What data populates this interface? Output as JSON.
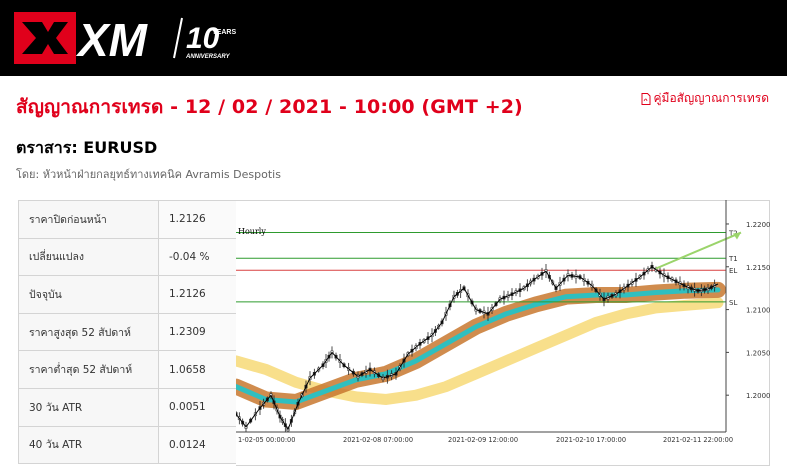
{
  "brand": {
    "logo_text": "XM",
    "anniversary_number": "10",
    "anniversary_years": "YEARS",
    "anniversary_label": "ANNIVERSARY",
    "accent": "#e0001b"
  },
  "title": "สัญญาณการเทรด - 12 / 02 / 2021 - 10:00 (GMT +2)",
  "guide_link": "คู่มือสัญญาณการเทรด",
  "instrument": "ตราสาร: EURUSD",
  "author": "โดย: หัวหน้าฝ่ายกลยุทธ์ทางเทคนิค Avramis Despotis",
  "stats": [
    {
      "label": "ราคาปิดก่อนหน้า",
      "value": "1.2126"
    },
    {
      "label": "เปลี่ยนแปลง",
      "value": "-0.04 %"
    },
    {
      "label": "ปัจจุบัน",
      "value": "1.2126"
    },
    {
      "label": "ราคาสูงสุด 52 สัปดาห์",
      "value": "1.2309"
    },
    {
      "label": "ราคาต่ำสุด 52 สัปดาห์",
      "value": "1.0658"
    },
    {
      "label": "30 วัน ATR",
      "value": "0.0051"
    },
    {
      "label": "40 วัน ATR",
      "value": "0.0124"
    }
  ],
  "chart_data": {
    "type": "line",
    "title": "Hourly",
    "x_tick_labels": [
      "1-02-05 00:00:00",
      "2021-02-08 07:00:00",
      "2021-02-09 12:00:00",
      "2021-02-10 17:00:00",
      "2021-02-11 22:00:00"
    ],
    "y_ticks": [
      "1.2200",
      "1.2150",
      "1.2100",
      "1.2050",
      "1.2000"
    ],
    "ylim": [
      1.1957,
      1.2228
    ],
    "levels": [
      {
        "name": "T2",
        "value": 1.219,
        "color": "#2e9b2e"
      },
      {
        "name": "T1",
        "value": 1.216,
        "color": "#2e9b2e"
      },
      {
        "name": "EL",
        "value": 1.2146,
        "color": "#d94040"
      },
      {
        "name": "SL",
        "value": 1.2109,
        "color": "#2e9b2e"
      }
    ],
    "price_path": [
      {
        "x": 0,
        "y": 1.1978
      },
      {
        "x": 10,
        "y": 1.1963
      },
      {
        "x": 24,
        "y": 1.1985
      },
      {
        "x": 35,
        "y": 1.2
      },
      {
        "x": 44,
        "y": 1.1975
      },
      {
        "x": 52,
        "y": 1.196
      },
      {
        "x": 62,
        "y": 1.199
      },
      {
        "x": 74,
        "y": 1.202
      },
      {
        "x": 87,
        "y": 1.2035
      },
      {
        "x": 96,
        "y": 1.205
      },
      {
        "x": 108,
        "y": 1.2035
      },
      {
        "x": 122,
        "y": 1.2022
      },
      {
        "x": 134,
        "y": 1.203
      },
      {
        "x": 147,
        "y": 1.202
      },
      {
        "x": 160,
        "y": 1.2025
      },
      {
        "x": 172,
        "y": 1.2048
      },
      {
        "x": 184,
        "y": 1.206
      },
      {
        "x": 196,
        "y": 1.207
      },
      {
        "x": 206,
        "y": 1.2085
      },
      {
        "x": 218,
        "y": 1.2115
      },
      {
        "x": 228,
        "y": 1.2125
      },
      {
        "x": 240,
        "y": 1.21
      },
      {
        "x": 252,
        "y": 1.2095
      },
      {
        "x": 264,
        "y": 1.2112
      },
      {
        "x": 276,
        "y": 1.2118
      },
      {
        "x": 288,
        "y": 1.2125
      },
      {
        "x": 298,
        "y": 1.2135
      },
      {
        "x": 310,
        "y": 1.2145
      },
      {
        "x": 320,
        "y": 1.2125
      },
      {
        "x": 332,
        "y": 1.214
      },
      {
        "x": 344,
        "y": 1.2138
      },
      {
        "x": 356,
        "y": 1.2128
      },
      {
        "x": 368,
        "y": 1.2112
      },
      {
        "x": 380,
        "y": 1.2118
      },
      {
        "x": 392,
        "y": 1.2128
      },
      {
        "x": 404,
        "y": 1.2138
      },
      {
        "x": 416,
        "y": 1.215
      },
      {
        "x": 428,
        "y": 1.214
      },
      {
        "x": 440,
        "y": 1.2133
      },
      {
        "x": 452,
        "y": 1.2126
      },
      {
        "x": 462,
        "y": 1.2122
      },
      {
        "x": 472,
        "y": 1.2124
      },
      {
        "x": 482,
        "y": 1.213
      }
    ],
    "ema_fast": [
      {
        "x": 0,
        "y": 1.201
      },
      {
        "x": 30,
        "y": 1.1995
      },
      {
        "x": 60,
        "y": 1.1992
      },
      {
        "x": 90,
        "y": 1.2005
      },
      {
        "x": 120,
        "y": 1.2018
      },
      {
        "x": 150,
        "y": 1.2025
      },
      {
        "x": 180,
        "y": 1.204
      },
      {
        "x": 210,
        "y": 1.206
      },
      {
        "x": 240,
        "y": 1.208
      },
      {
        "x": 270,
        "y": 1.2095
      },
      {
        "x": 300,
        "y": 1.2106
      },
      {
        "x": 330,
        "y": 1.2115
      },
      {
        "x": 360,
        "y": 1.2117
      },
      {
        "x": 390,
        "y": 1.2117
      },
      {
        "x": 420,
        "y": 1.212
      },
      {
        "x": 450,
        "y": 1.2122
      },
      {
        "x": 482,
        "y": 1.2123
      }
    ],
    "ema_slow": [
      {
        "x": 0,
        "y": 1.204
      },
      {
        "x": 30,
        "y": 1.203
      },
      {
        "x": 60,
        "y": 1.2015
      },
      {
        "x": 90,
        "y": 1.2005
      },
      {
        "x": 120,
        "y": 1.1998
      },
      {
        "x": 150,
        "y": 1.1995
      },
      {
        "x": 180,
        "y": 1.2
      },
      {
        "x": 210,
        "y": 1.201
      },
      {
        "x": 240,
        "y": 1.2025
      },
      {
        "x": 270,
        "y": 1.204
      },
      {
        "x": 300,
        "y": 1.2055
      },
      {
        "x": 330,
        "y": 1.207
      },
      {
        "x": 360,
        "y": 1.2085
      },
      {
        "x": 390,
        "y": 1.2095
      },
      {
        "x": 420,
        "y": 1.2102
      },
      {
        "x": 450,
        "y": 1.2105
      },
      {
        "x": 482,
        "y": 1.2108
      }
    ],
    "projection": [
      {
        "x": 420,
        "y": 1.2148
      },
      {
        "x": 505,
        "y": 1.219
      }
    ],
    "colors": {
      "band_outer": "#c8782f",
      "band_inner": "#2fbfbf",
      "slow_band": "#f7dc7e",
      "price": "#000000",
      "projection": "#9bd46b"
    }
  }
}
